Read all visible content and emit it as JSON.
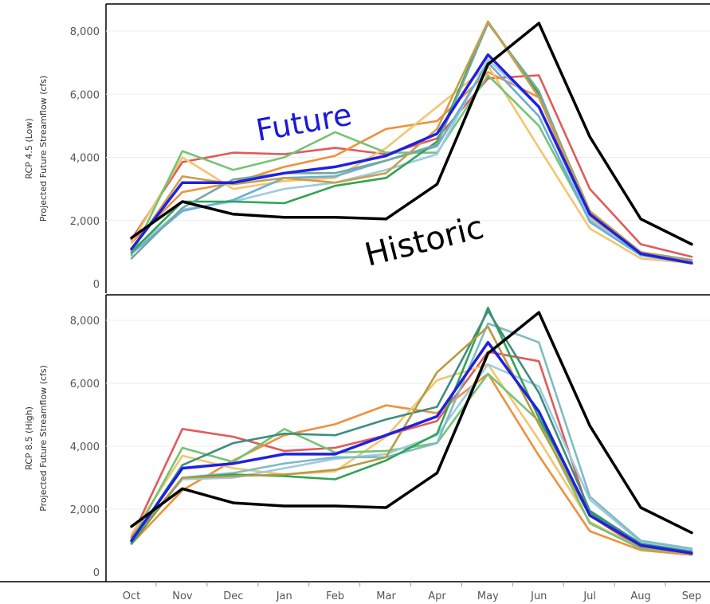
{
  "chart_data": [
    {
      "type": "line",
      "panel_label": "RCP 4.5 (Low)",
      "ylabel": "Projected Future Streamflow (cfs)",
      "categories": [
        "Oct",
        "Nov",
        "Dec",
        "Jan",
        "Feb",
        "Mar",
        "Apr",
        "May",
        "Jun",
        "Jul",
        "Aug",
        "Sep"
      ],
      "yticks": [
        "0",
        "2,000",
        "4,000",
        "6,000",
        "8,000"
      ],
      "ylim": [
        0,
        8600
      ],
      "annotations": [
        {
          "text": "Future",
          "color": "#1a1adb"
        },
        {
          "text": "Historic",
          "color": "#000000"
        }
      ],
      "series": [
        {
          "color": "#e05a5a",
          "values": [
            1400,
            3850,
            4150,
            4100,
            4300,
            4100,
            4600,
            6500,
            6600,
            3000,
            1250,
            850
          ]
        },
        {
          "color": "#f0903c",
          "values": [
            1300,
            2900,
            3200,
            3700,
            4050,
            4900,
            5150,
            6700,
            5900,
            2150,
            900,
            700
          ]
        },
        {
          "color": "#f2c66e",
          "values": [
            1300,
            4000,
            3000,
            3250,
            3350,
            4300,
            5600,
            6900,
            4300,
            1750,
            800,
            650
          ]
        },
        {
          "color": "#74c476",
          "values": [
            900,
            4200,
            3600,
            4000,
            4800,
            4150,
            4150,
            6600,
            5000,
            2000,
            950,
            650
          ]
        },
        {
          "color": "#9ecae1",
          "values": [
            1050,
            2350,
            2600,
            3000,
            3200,
            3600,
            4100,
            7100,
            5600,
            2050,
            900,
            650
          ]
        },
        {
          "color": "#6baed6",
          "values": [
            950,
            2300,
            2650,
            3350,
            3400,
            3900,
            4350,
            7000,
            5300,
            1950,
            900,
            650
          ]
        },
        {
          "color": "#31a354",
          "values": [
            1000,
            2600,
            2600,
            2550,
            3100,
            3350,
            4500,
            8300,
            6000,
            2300,
            1000,
            700
          ]
        },
        {
          "color": "#74a9a0",
          "values": [
            800,
            2400,
            3300,
            3500,
            3500,
            3900,
            4400,
            8250,
            6100,
            2200,
            1000,
            750
          ]
        },
        {
          "color": "#c9a04a",
          "values": [
            1050,
            3400,
            3150,
            3350,
            3200,
            3500,
            4900,
            8300,
            5900,
            2300,
            1000,
            700
          ]
        },
        {
          "color": "#2020e0",
          "values": [
            1100,
            3200,
            3200,
            3500,
            3700,
            4050,
            4750,
            7250,
            5600,
            2200,
            950,
            650
          ]
        },
        {
          "color": "#000000",
          "values": [
            1450,
            2600,
            2200,
            2100,
            2100,
            2050,
            3150,
            6950,
            8250,
            4650,
            2050,
            1250
          ]
        }
      ]
    },
    {
      "type": "line",
      "panel_label": "RCP 8.5 (High)",
      "ylabel": "Projected Future Streamflow (cfs)",
      "categories": [
        "Oct",
        "Nov",
        "Dec",
        "Jan",
        "Feb",
        "Mar",
        "Apr",
        "May",
        "Jun",
        "Jul",
        "Aug",
        "Sep"
      ],
      "yticks": [
        "0",
        "2,000",
        "4,000",
        "6,000",
        "8,000"
      ],
      "ylim": [
        0,
        8600
      ],
      "series": [
        {
          "color": "#e05a5a",
          "values": [
            1100,
            4550,
            4300,
            3850,
            3950,
            4350,
            4800,
            7000,
            6700,
            1800,
            750,
            550
          ]
        },
        {
          "color": "#f0903c",
          "values": [
            900,
            2600,
            3550,
            4350,
            4700,
            5300,
            5050,
            6300,
            3700,
            1300,
            700,
            550
          ]
        },
        {
          "color": "#f2c66e",
          "values": [
            1200,
            3700,
            3300,
            3100,
            3200,
            4300,
            6100,
            6600,
            4200,
            1600,
            750,
            600
          ]
        },
        {
          "color": "#74c476",
          "values": [
            1000,
            3950,
            3500,
            4550,
            3800,
            3850,
            4100,
            6300,
            4800,
            1550,
            750,
            600
          ]
        },
        {
          "color": "#9ecae1",
          "values": [
            1050,
            2950,
            3000,
            3300,
            3600,
            3750,
            4350,
            6600,
            5900,
            2300,
            950,
            700
          ]
        },
        {
          "color": "#7fbcc2",
          "values": [
            950,
            3000,
            3150,
            3450,
            3650,
            3650,
            4100,
            7900,
            7300,
            2400,
            1000,
            750
          ]
        },
        {
          "color": "#31a354",
          "values": [
            900,
            3000,
            3100,
            3050,
            2950,
            3550,
            4400,
            8400,
            4900,
            1900,
            850,
            650
          ]
        },
        {
          "color": "#3e8e7e",
          "values": [
            950,
            3400,
            4100,
            4400,
            4350,
            4850,
            5250,
            8300,
            5700,
            1950,
            900,
            650
          ]
        },
        {
          "color": "#b89a44",
          "values": [
            1000,
            3000,
            3050,
            3100,
            3250,
            3650,
            6350,
            7800,
            4700,
            1800,
            800,
            600
          ]
        },
        {
          "color": "#2020e0",
          "values": [
            1000,
            3300,
            3450,
            3750,
            3750,
            4350,
            4950,
            7300,
            5100,
            1800,
            850,
            600
          ]
        },
        {
          "color": "#000000",
          "values": [
            1450,
            2650,
            2200,
            2100,
            2100,
            2050,
            3150,
            6950,
            8250,
            4650,
            2050,
            1250
          ]
        }
      ]
    }
  ]
}
